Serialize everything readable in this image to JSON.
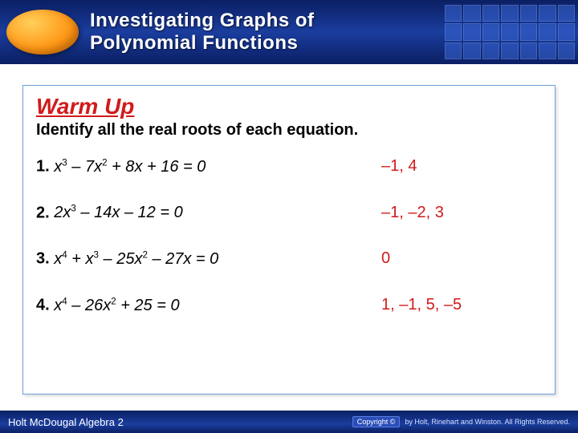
{
  "header": {
    "title_line1": "Investigating Graphs of",
    "title_line2": "Polynomial Functions",
    "band_gradient": [
      "#0b1f63",
      "#1a3d9e",
      "#0b1f63"
    ],
    "oval_colors": [
      "#ffcf5a",
      "#ff9b1a",
      "#d86f00"
    ],
    "grid_cell_fill": "#3a66d4",
    "grid_cell_border": "#6f93e8"
  },
  "content": {
    "border_color": "#6fa0d8",
    "warmup_label": "Warm Up",
    "warmup_color": "#d11a1a",
    "instruction": "Identify all the real roots of each equation.",
    "text_color": "#000000",
    "answer_color": "#d11a1a",
    "problems": [
      {
        "num": "1.",
        "eq_html": "<i>x</i><sup>3</sup> – 7<i>x</i><sup>2</sup> + 8<i>x</i> + 16 = 0",
        "answer": "–1, 4"
      },
      {
        "num": "2.",
        "eq_html": "2<i>x</i><sup>3</sup> – 14<i>x</i> – 12 = 0",
        "answer": "–1, –2, 3"
      },
      {
        "num": "3.",
        "eq_html": "<i>x</i><sup>4</sup> + <i>x</i><sup>3</sup> – 25<i>x</i><sup>2</sup> – 27<i>x</i> = 0",
        "answer": "0"
      },
      {
        "num": "4.",
        "eq_html": "<i>x</i><sup>4</sup> – 26<i>x</i><sup>2</sup> + 25 = 0",
        "answer": "1, –1, 5, –5"
      }
    ]
  },
  "footer": {
    "left": "Holt McDougal Algebra 2",
    "copyright_label": "Copyright ©",
    "copyright_text": "by Holt, Rinehart and Winston. All Rights Reserved."
  }
}
